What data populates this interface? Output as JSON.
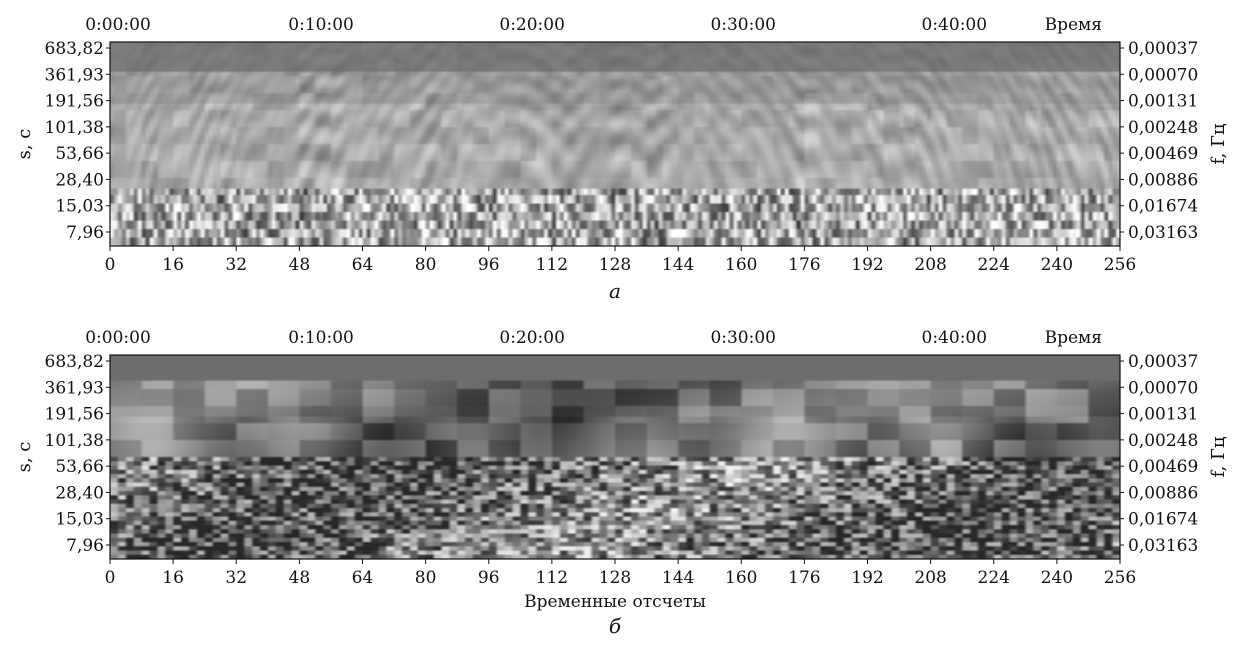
{
  "chart_data": [
    {
      "type": "heatmap",
      "panel_label": "а",
      "time_axis_label": "Время",
      "time_ticks": [
        "0:00:00",
        "0:10:00",
        "0:20:00",
        "0:30:00",
        "0:40:00"
      ],
      "x_ticks": [
        "0",
        "16",
        "32",
        "48",
        "64",
        "80",
        "96",
        "112",
        "128",
        "144",
        "160",
        "176",
        "192",
        "208",
        "224",
        "240",
        "256"
      ],
      "xlim": [
        0,
        256
      ],
      "xlabel": "",
      "ylabel_left": "s, с",
      "ylabel_right": "f, Гц",
      "y_ticks_left": [
        "683,82",
        "361,93",
        "191,56",
        "101,38",
        "53,66",
        "28,40",
        "15,03",
        "7,96"
      ],
      "y_ticks_right": [
        "0,00037",
        "0,00070",
        "0,00131",
        "0,00248",
        "0,00469",
        "0,00886",
        "0,01674",
        "0,03163"
      ],
      "colormap": "grayscale"
    },
    {
      "type": "heatmap",
      "panel_label": "б",
      "time_axis_label": "Время",
      "time_ticks": [
        "0:00:00",
        "0:10:00",
        "0:20:00",
        "0:30:00",
        "0:40:00"
      ],
      "x_ticks": [
        "0",
        "16",
        "32",
        "48",
        "64",
        "80",
        "96",
        "112",
        "128",
        "144",
        "160",
        "176",
        "192",
        "208",
        "224",
        "240",
        "256"
      ],
      "xlim": [
        0,
        256
      ],
      "xlabel": "Временные отсчеты",
      "ylabel_left": "s, с",
      "ylabel_right": "f, Гц",
      "y_ticks_left": [
        "683,82",
        "361,93",
        "191,56",
        "101,38",
        "53,66",
        "28,40",
        "15,03",
        "7,96"
      ],
      "y_ticks_right": [
        "0,00037",
        "0,00070",
        "0,00131",
        "0,00248",
        "0,00469",
        "0,00886",
        "0,01674",
        "0,03163"
      ],
      "colormap": "grayscale"
    }
  ]
}
